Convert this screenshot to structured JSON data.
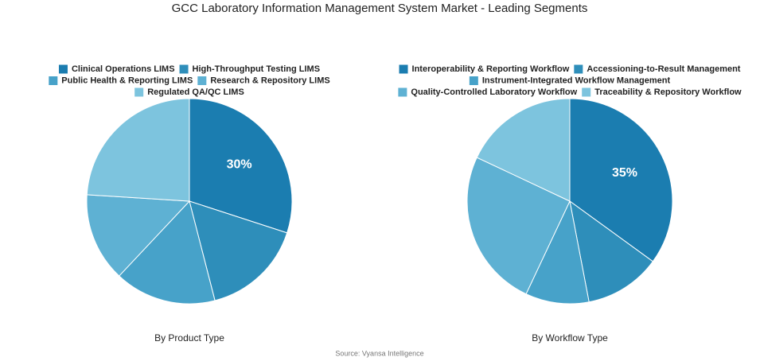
{
  "title": "GCC Laboratory Information Management System Market - Leading Segments",
  "source": "Source: Vyansa Intelligence",
  "chart_data": [
    {
      "type": "pie",
      "title": "By Product Type",
      "categories": [
        "Clinical Operations LIMS",
        "High-Throughput Testing LIMS",
        "Public Health & Reporting LIMS",
        "Research & Repository LIMS",
        "Regulated QA/QC LIMS"
      ],
      "values": [
        30,
        16,
        16,
        14,
        24
      ],
      "value_labels": [
        "30%",
        null,
        null,
        null,
        null
      ],
      "colors": [
        "#1b7db0",
        "#2e8eba",
        "#47a2c9",
        "#5eb1d3",
        "#7dc4de"
      ]
    },
    {
      "type": "pie",
      "title": "By Workflow Type",
      "categories": [
        "Interoperability & Reporting Workflow",
        "Accessioning-to-Result Management",
        "Instrument-Integrated Workflow Management",
        "Quality-Controlled Laboratory Workflow",
        "Traceability & Repository Workflow"
      ],
      "values": [
        35,
        12,
        10,
        25,
        18
      ],
      "value_labels": [
        "35%",
        null,
        null,
        null,
        null
      ],
      "colors": [
        "#1b7db0",
        "#2e8eba",
        "#47a2c9",
        "#5eb1d3",
        "#7dc4de"
      ]
    }
  ]
}
